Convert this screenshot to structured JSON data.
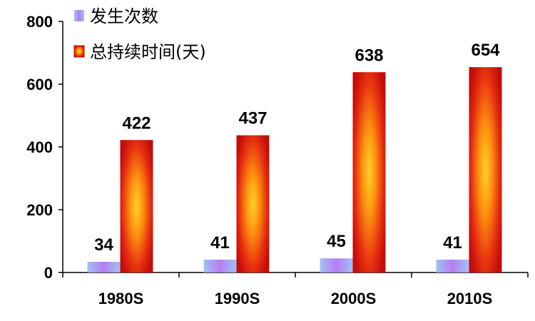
{
  "chart_data": {
    "type": "bar",
    "categories": [
      "1980S",
      "1990S",
      "2000S",
      "2010S"
    ],
    "series": [
      {
        "name": "发生次数",
        "values": [
          34,
          41,
          45,
          41
        ]
      },
      {
        "name": "总持续时间(天)",
        "values": [
          422,
          437,
          638,
          654
        ]
      }
    ],
    "yticks": [
      "0",
      "200",
      "400",
      "600",
      "800"
    ],
    "ylim": [
      0,
      800
    ],
    "grid": false,
    "legend_position": "top-left",
    "colors": {
      "series1_edge": "#9fc3f5",
      "series1_mid": "#b77cf2",
      "series2_edge": "#d01010",
      "series2_mid": "#ffd21a",
      "axis": "#000000"
    }
  }
}
